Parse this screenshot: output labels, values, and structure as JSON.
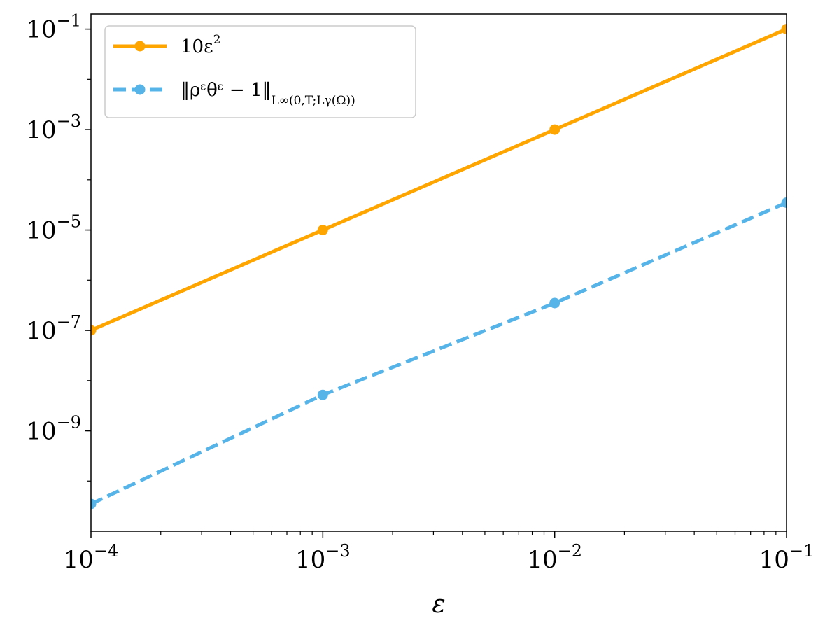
{
  "chart_data": {
    "type": "line",
    "xscale": "log",
    "yscale": "log",
    "xlabel": "ε",
    "ylabel": "",
    "xlim": [
      0.0001,
      0.1
    ],
    "ylim": [
      1e-11,
      0.2
    ],
    "grid": false,
    "legend_position": "top-left",
    "x": [
      0.0001,
      0.001,
      0.01,
      0.1
    ],
    "xticks": [
      {
        "value": 0.0001,
        "base": "10",
        "exp": "−4"
      },
      {
        "value": 0.001,
        "base": "10",
        "exp": "−3"
      },
      {
        "value": 0.01,
        "base": "10",
        "exp": "−2"
      },
      {
        "value": 0.1,
        "base": "10",
        "exp": "−1"
      }
    ],
    "yticks": [
      {
        "value": 1e-09,
        "base": "10",
        "exp": "−9"
      },
      {
        "value": 1e-07,
        "base": "10",
        "exp": "−7"
      },
      {
        "value": 1e-05,
        "base": "10",
        "exp": "−5"
      },
      {
        "value": 0.001,
        "base": "10",
        "exp": "−3"
      },
      {
        "value": 0.1,
        "base": "10",
        "exp": "−1"
      }
    ],
    "series": [
      {
        "name": "10ε²",
        "legend_main": "10ε",
        "legend_sup": "2",
        "legend_sub": "",
        "values": [
          1e-07,
          1e-05,
          0.001,
          0.1
        ],
        "color": "#ffa500",
        "dash": "solid"
      },
      {
        "name": "‖ρ^ϵθ^ϵ − 1‖_{L^∞(0,T;L^γ(Ω))}",
        "legend_main": "‖ρᵋθᵋ − 1‖",
        "legend_sup": "",
        "legend_sub": "L∞(0,T;Lγ(Ω))",
        "values": [
          3.5e-11,
          5.2e-09,
          3.5e-07,
          3.5e-05
        ],
        "color": "#56b4e9",
        "dash": "dashed"
      }
    ]
  }
}
